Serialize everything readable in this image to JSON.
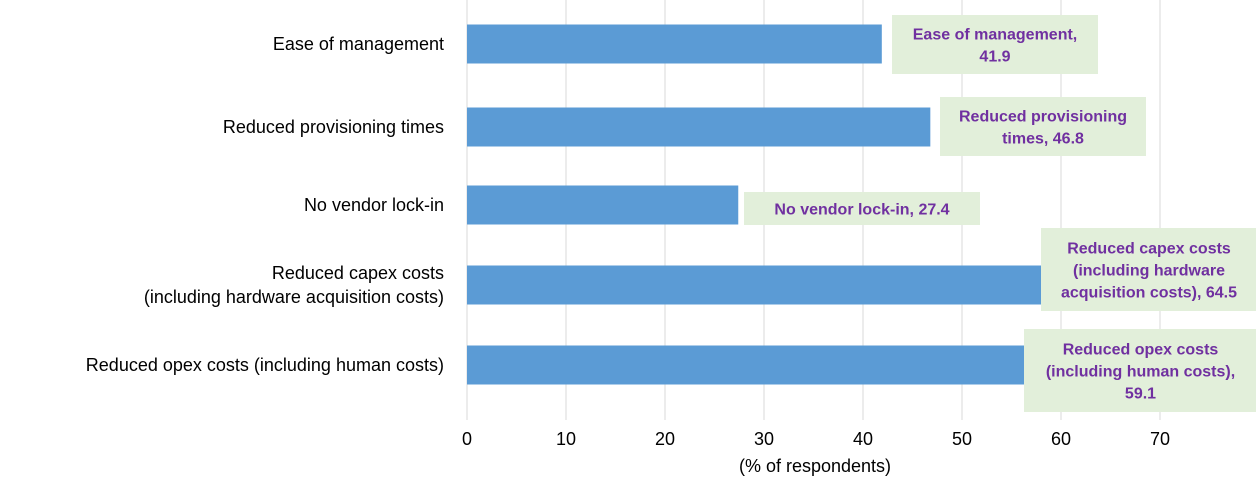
{
  "chart_data": {
    "type": "bar",
    "orientation": "horizontal",
    "categories": [
      [
        "Ease of management"
      ],
      [
        "Reduced provisioning times"
      ],
      [
        "No vendor lock-in"
      ],
      [
        "Reduced capex costs",
        "(including hardware acquisition costs)"
      ],
      [
        "Reduced opex costs (including human costs)"
      ]
    ],
    "values": [
      41.9,
      46.8,
      27.4,
      64.5,
      59.1
    ],
    "data_labels": [
      [
        "Ease of management,",
        "41.9"
      ],
      [
        "Reduced provisioning",
        "times, 46.8"
      ],
      [
        "No vendor lock-in, 27.4"
      ],
      [
        "Reduced capex costs",
        "(including hardware",
        "acquisition costs), 64.5"
      ],
      [
        "Reduced opex costs",
        "(including human costs),",
        "59.1"
      ]
    ],
    "xlabel": "(% of respondents)",
    "ylabel": "",
    "title": "",
    "xlim": [
      0,
      80
    ],
    "xticks": [
      0,
      10,
      20,
      30,
      40,
      50,
      60,
      70
    ],
    "grid": "vertical",
    "legend": "none",
    "colors": {
      "bar": "#5B9BD5",
      "gridline": "#D9D9D9",
      "label_box": "#E2EFDA",
      "label_text": "#7030A0"
    }
  }
}
